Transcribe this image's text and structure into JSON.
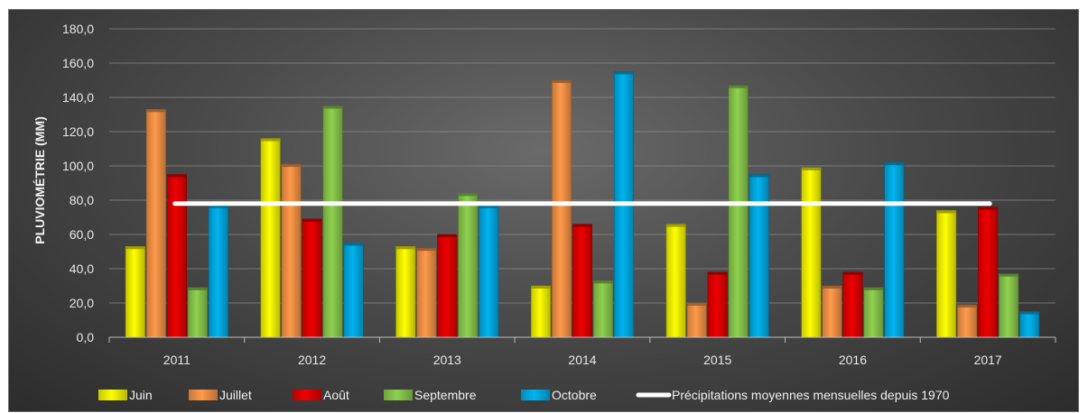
{
  "chart_data": {
    "type": "bar",
    "title": "",
    "xlabel": "",
    "ylabel": "PLUVIOMÉTRIE (MM)",
    "categories": [
      "2011",
      "2012",
      "2013",
      "2014",
      "2015",
      "2016",
      "2017"
    ],
    "ylim": [
      0,
      180
    ],
    "yticks": [
      "0,0",
      "20,0",
      "40,0",
      "60,0",
      "80,0",
      "100,0",
      "120,0",
      "140,0",
      "160,0",
      "180,0"
    ],
    "grid": true,
    "legend_position": "bottom",
    "series": [
      {
        "name": "Juin",
        "color": "#ffff00",
        "values": [
          53,
          116,
          53,
          30,
          66,
          99,
          74
        ]
      },
      {
        "name": "Juillet",
        "color": "#ff9a4a",
        "values": [
          133,
          101,
          52,
          150,
          20,
          30,
          19
        ]
      },
      {
        "name": "Août",
        "color": "#ee0000",
        "values": [
          95,
          69,
          60,
          66,
          38,
          38,
          76
        ]
      },
      {
        "name": "Septembre",
        "color": "#8fd14f",
        "values": [
          29,
          135,
          84,
          33,
          147,
          29,
          37
        ]
      },
      {
        "name": "Octobre",
        "color": "#00b4f0",
        "values": [
          77,
          55,
          77,
          155,
          95,
          102,
          15
        ]
      }
    ],
    "reference_line": {
      "name": "Précipitations moyennes mensuelles depuis 1970",
      "value": 78,
      "color": "#ffffff"
    }
  }
}
